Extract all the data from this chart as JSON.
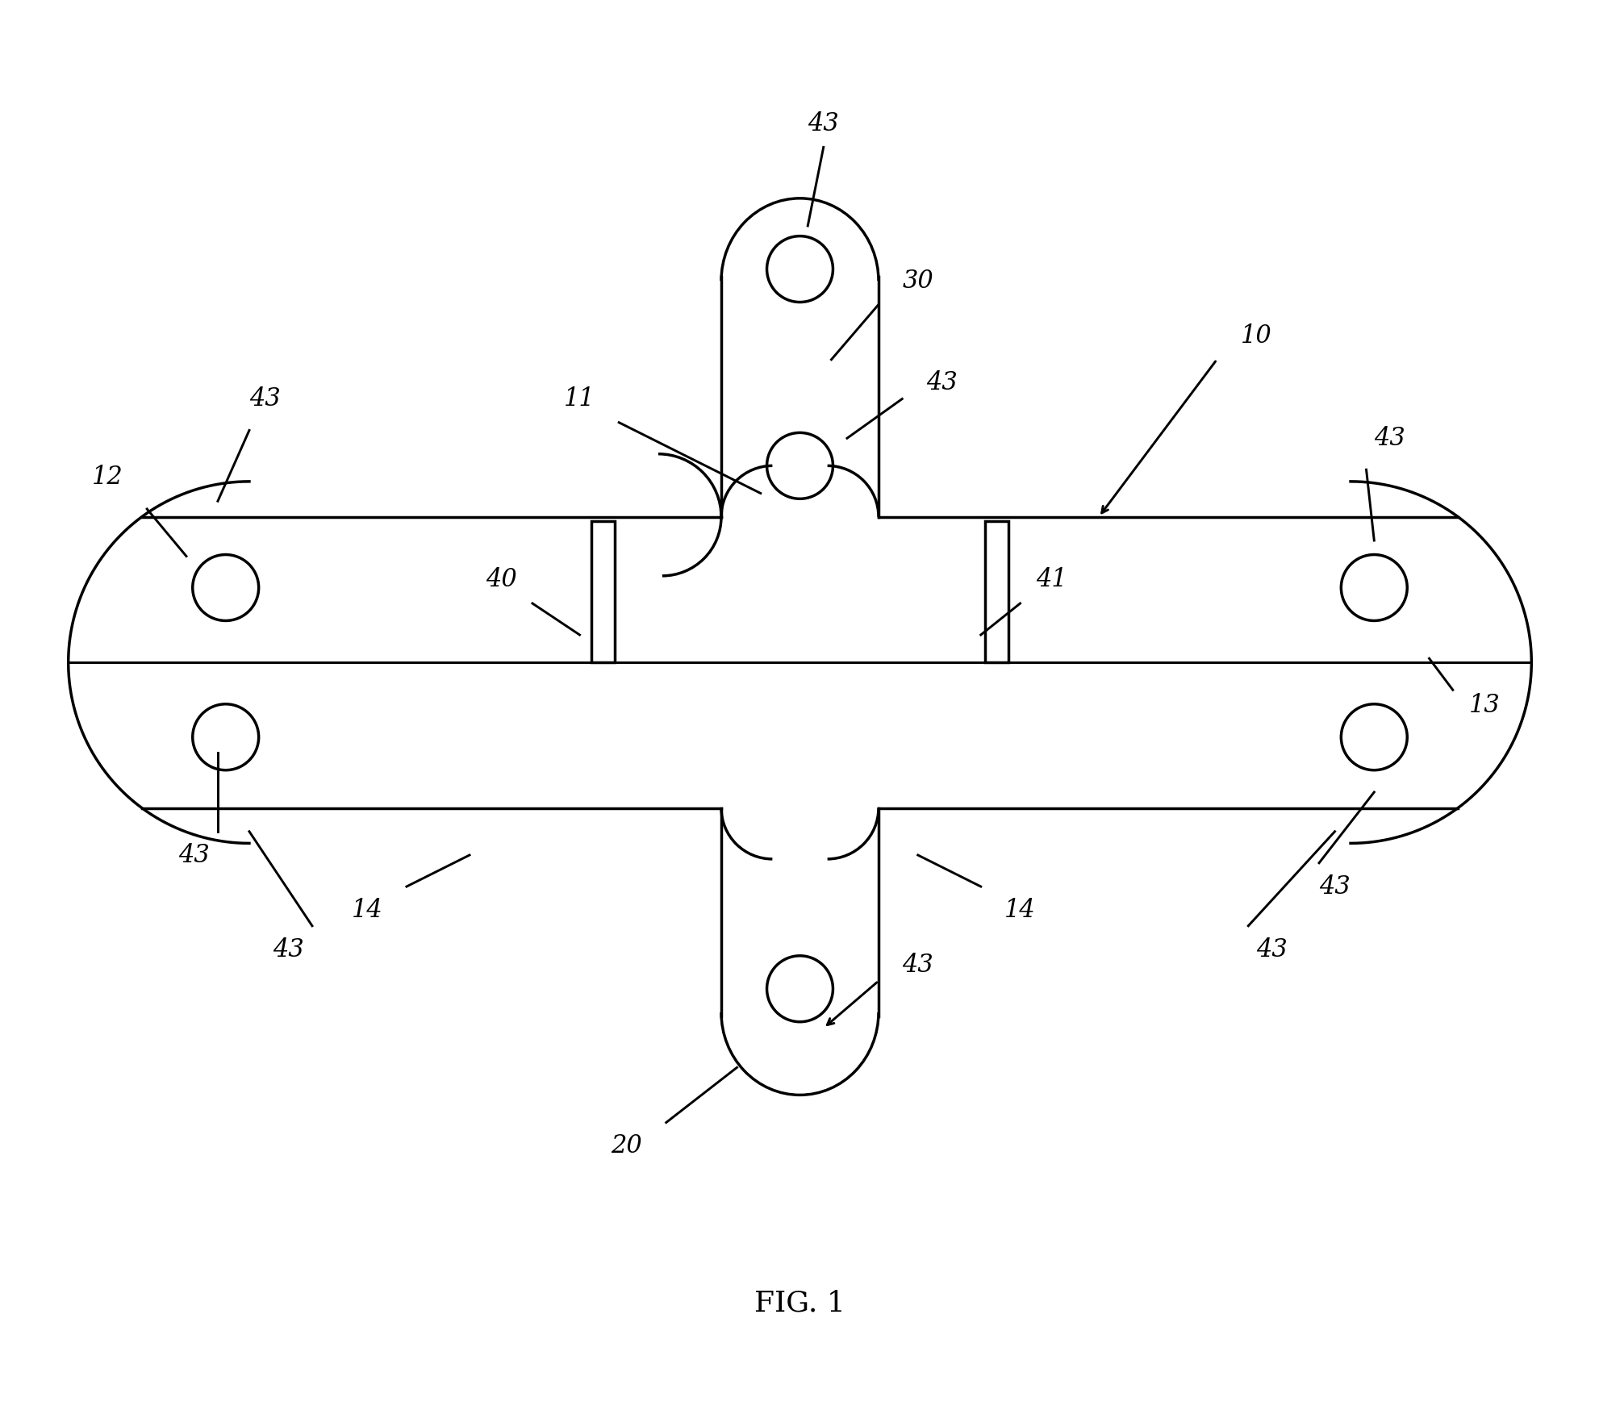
{
  "bg_color": "#ffffff",
  "line_color": "#000000",
  "lw": 2.5,
  "fig_width": 19.83,
  "fig_height": 17.69,
  "fig_label": "FIG. 1",
  "font_size": 22
}
